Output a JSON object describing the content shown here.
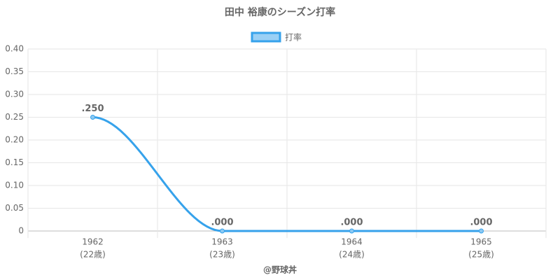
{
  "chart_data": {
    "type": "line",
    "title": "田中 裕康のシーズン打率",
    "categories": [
      "1962",
      "1963",
      "1964",
      "1965"
    ],
    "category_sublabels": [
      "(22歳)",
      "(23歳)",
      "(24歳)",
      "(25歳)"
    ],
    "series": [
      {
        "name": "打率",
        "color": "#36a2eb",
        "values": [
          0.25,
          0,
          0,
          0
        ],
        "value_labels": [
          ".250",
          ".000",
          ".000",
          ".000"
        ]
      }
    ],
    "ylim": [
      0,
      0.4
    ],
    "yticks": [
      0,
      0.05,
      {
        "value": 0.1,
        "label": "0.10"
      },
      0.15,
      {
        "value": 0.2,
        "label": "0.20"
      },
      0.25,
      {
        "value": 0.3,
        "label": "0.30"
      },
      0.35,
      {
        "value": 0.4,
        "label": "0.40"
      }
    ],
    "x_label": "@野球丼",
    "grid": true,
    "legend": "top"
  }
}
